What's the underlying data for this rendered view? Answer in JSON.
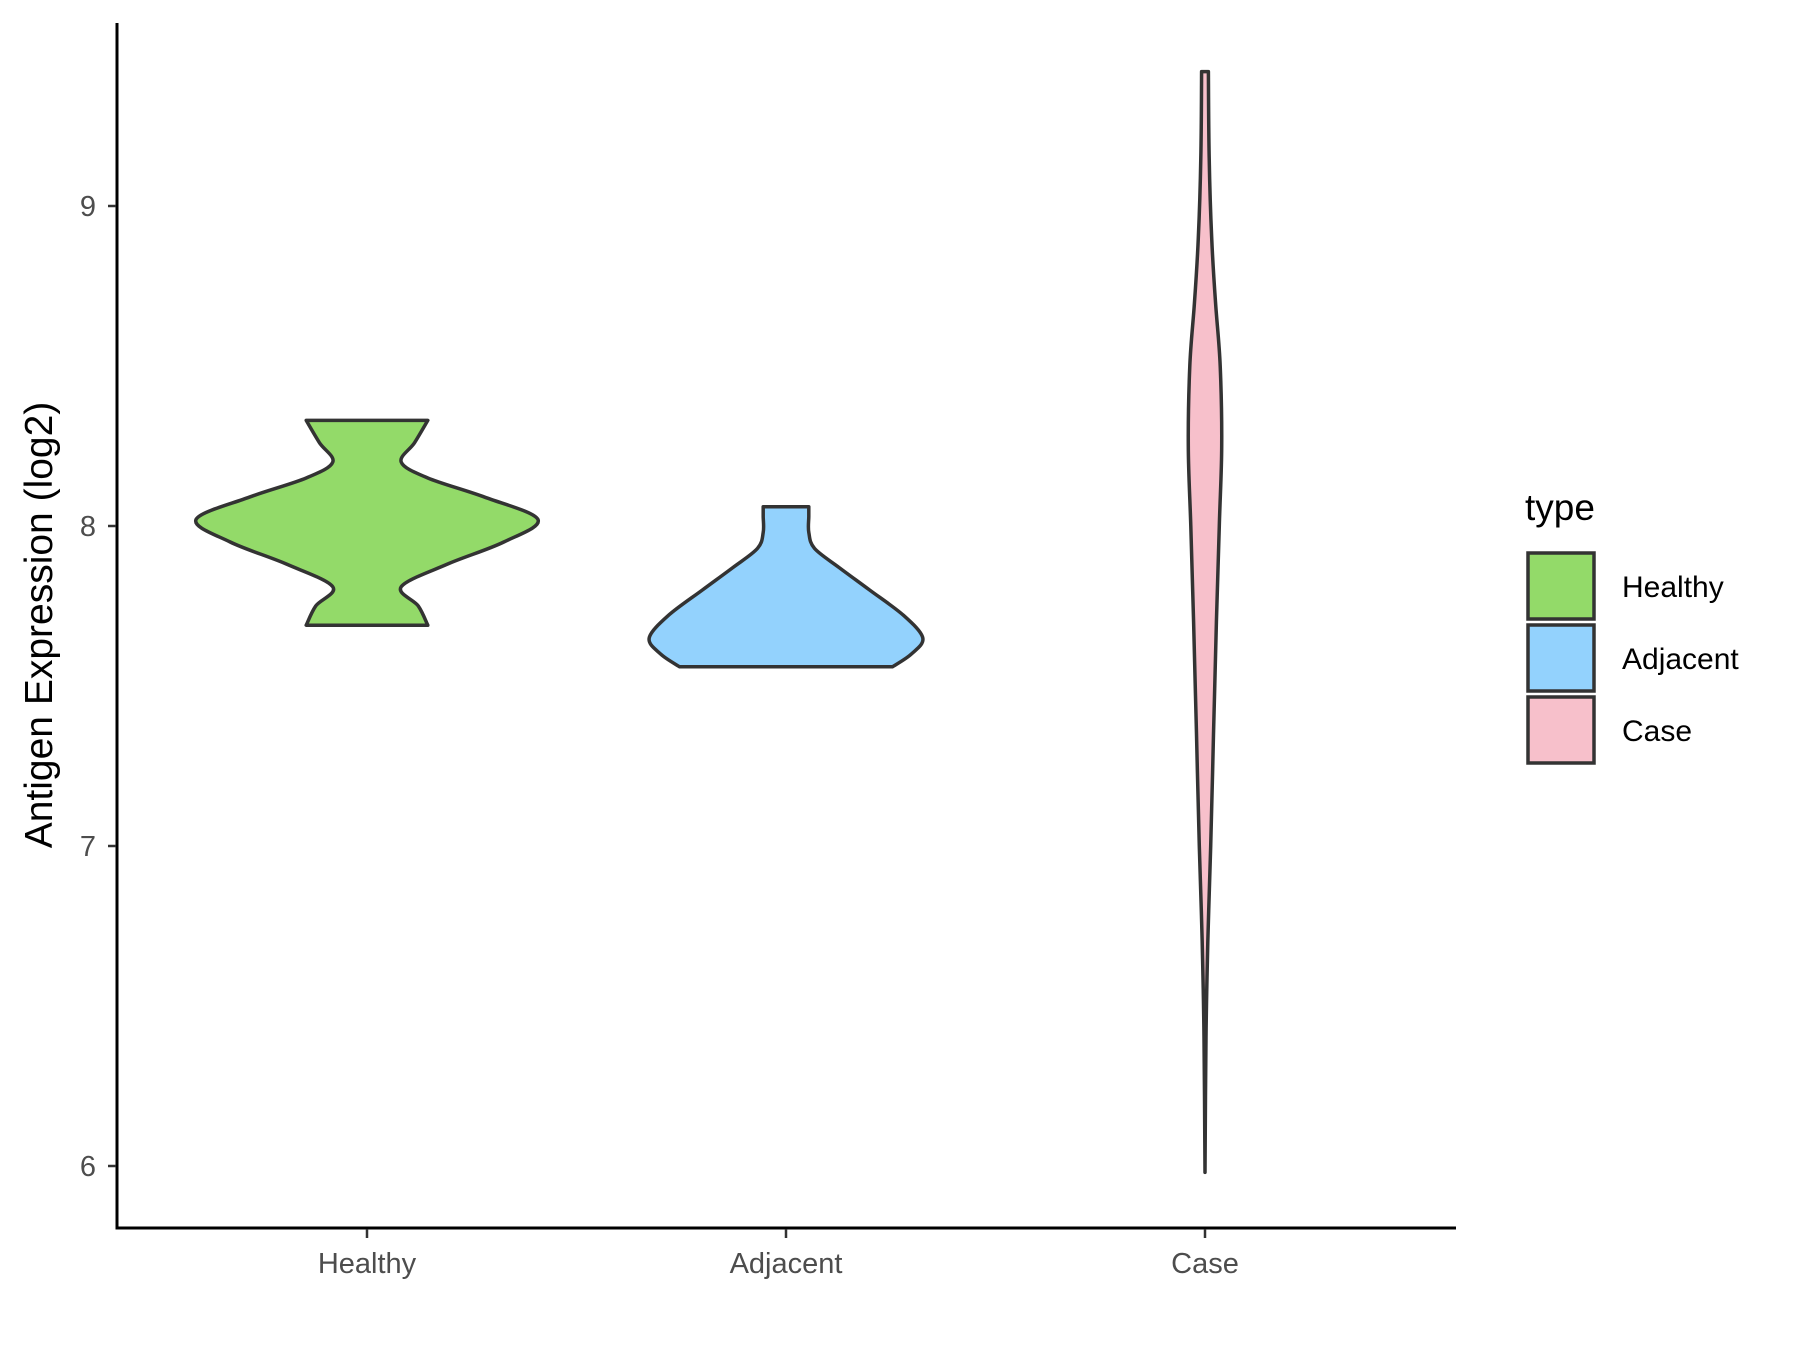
{
  "chart_data": {
    "type": "violin",
    "ylabel": "Antigen Expression (log2)",
    "xlabel": "",
    "ylim": [
      5.8,
      9.57
    ],
    "yticks": [
      "6",
      "7",
      "8",
      "9"
    ],
    "categories": [
      "Healthy",
      "Adjacent",
      "Case"
    ],
    "legend": {
      "title": "type",
      "placement": "right",
      "items": [
        {
          "label": "Healthy",
          "color": "#93DA69"
        },
        {
          "label": "Adjacent",
          "color": "#93D2FD"
        },
        {
          "label": "Case",
          "color": "#F7C0CB"
        }
      ]
    },
    "series": [
      {
        "category": "Healthy",
        "color": "#93DA69",
        "min": 7.69,
        "max": 8.33,
        "density_profile": [
          [
            7.69,
            0.32
          ],
          [
            7.75,
            0.27
          ],
          [
            7.81,
            0.18
          ],
          [
            7.88,
            0.42
          ],
          [
            7.95,
            0.72
          ],
          [
            8.02,
            0.9
          ],
          [
            8.09,
            0.62
          ],
          [
            8.15,
            0.32
          ],
          [
            8.2,
            0.18
          ],
          [
            8.26,
            0.25
          ],
          [
            8.33,
            0.32
          ]
        ]
      },
      {
        "category": "Adjacent",
        "color": "#93D2FD",
        "min": 7.56,
        "max": 8.06,
        "density_profile": [
          [
            7.56,
            0.56
          ],
          [
            7.6,
            0.66
          ],
          [
            7.65,
            0.72
          ],
          [
            7.72,
            0.62
          ],
          [
            7.8,
            0.44
          ],
          [
            7.87,
            0.28
          ],
          [
            7.93,
            0.15
          ],
          [
            7.98,
            0.12
          ],
          [
            8.03,
            0.12
          ],
          [
            8.06,
            0.12
          ]
        ]
      },
      {
        "category": "Case",
        "color": "#F7C0CB",
        "min": 5.98,
        "max": 9.42,
        "density_profile": [
          [
            5.98,
            0.0
          ],
          [
            6.4,
            0.005
          ],
          [
            6.7,
            0.015
          ],
          [
            7.0,
            0.03
          ],
          [
            7.35,
            0.045
          ],
          [
            7.7,
            0.06
          ],
          [
            8.0,
            0.075
          ],
          [
            8.25,
            0.088
          ],
          [
            8.5,
            0.08
          ],
          [
            8.7,
            0.055
          ],
          [
            8.9,
            0.035
          ],
          [
            9.15,
            0.022
          ],
          [
            9.42,
            0.018
          ]
        ]
      }
    ]
  }
}
